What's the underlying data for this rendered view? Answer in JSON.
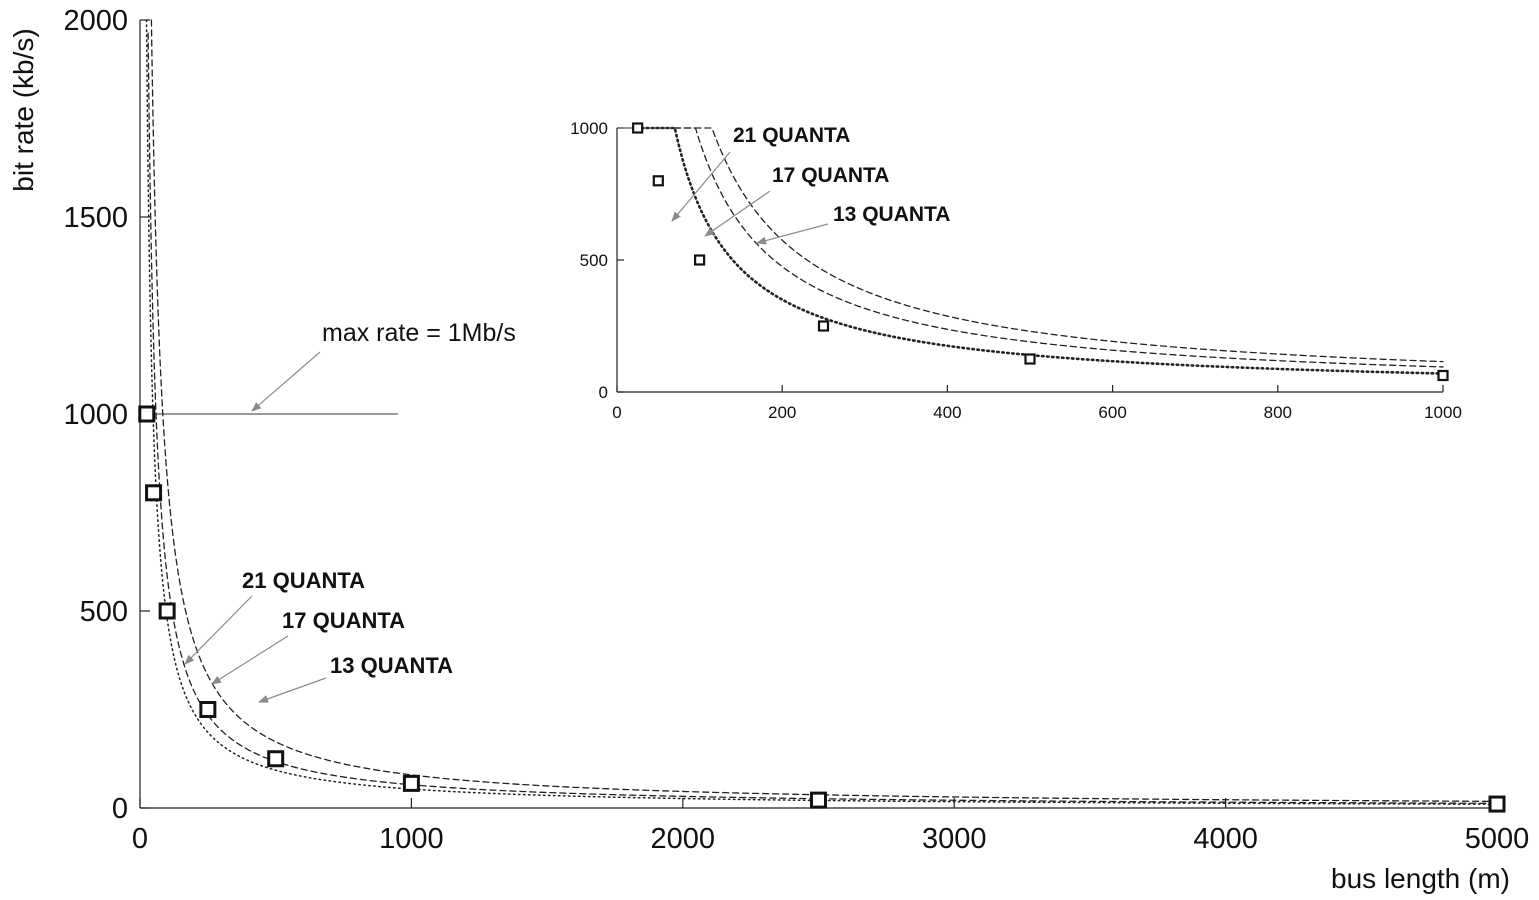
{
  "chart_data": [
    {
      "id": "main",
      "type": "line",
      "xlabel": "bus length (m)",
      "ylabel": "bit rate (kb/s)",
      "xlim": [
        0,
        5000
      ],
      "ylim": [
        0,
        2000
      ],
      "x_ticks": [
        0,
        1000,
        2000,
        3000,
        4000,
        5000
      ],
      "x_tick_labels": [
        "0",
        "1000",
        "2000",
        "3000",
        "4000",
        "5000"
      ],
      "y_ticks": [
        0,
        500,
        1000,
        1500,
        2000
      ],
      "y_tick_labels": [
        "0",
        "500",
        "1000",
        "1500",
        "2000"
      ],
      "series": [
        {
          "name": "13 QUANTA",
          "style": "dashed",
          "model": "k/x",
          "k": 84000,
          "x_range": [
            42,
            5000
          ]
        },
        {
          "name": "17 QUANTA",
          "style": "dashed",
          "model": "k/x",
          "k": 59000,
          "x_range": [
            30,
            5000
          ]
        },
        {
          "name": "21 QUANTA",
          "style": "dotted",
          "model": "k/x",
          "k": 48000,
          "x_range": [
            24,
            5000
          ]
        }
      ],
      "max_rate": {
        "label": "max rate = 1Mb/s",
        "value": 1000,
        "x_range": [
          0,
          950
        ]
      },
      "markers": {
        "name": "measured",
        "x": [
          25,
          50,
          100,
          250,
          500,
          1000,
          2500,
          5000
        ],
        "y": [
          1000,
          800,
          500,
          250,
          125,
          62.5,
          20,
          10
        ]
      },
      "labels": [
        "21 QUANTA",
        "17 QUANTA",
        "13 QUANTA"
      ]
    },
    {
      "id": "inset",
      "type": "line",
      "xlim": [
        0,
        1000
      ],
      "ylim": [
        0,
        1000
      ],
      "x_ticks": [
        0,
        200,
        400,
        600,
        800,
        1000
      ],
      "x_tick_labels": [
        "0",
        "200",
        "400",
        "600",
        "800",
        "1000"
      ],
      "y_ticks": [
        0,
        500,
        1000
      ],
      "y_tick_labels": [
        "0",
        "500",
        "1000"
      ],
      "series": [
        {
          "name": "13 QUANTA",
          "style": "dashed",
          "model": "k/x",
          "k": 115000,
          "x_range": [
            70,
            1000
          ]
        },
        {
          "name": "17 QUANTA",
          "style": "dashed",
          "model": "k/x",
          "k": 95000,
          "x_range": [
            45,
            1000
          ]
        },
        {
          "name": "21 QUANTA",
          "style": "dotted",
          "model": "k/x",
          "k": 70000,
          "x_range": [
            30,
            1000
          ]
        }
      ],
      "max_rate_value": 1000,
      "markers": {
        "name": "measured",
        "x": [
          25,
          50,
          100,
          250,
          500,
          1000
        ],
        "y": [
          1000,
          800,
          500,
          250,
          125,
          62.5
        ]
      },
      "labels": [
        "21 QUANTA",
        "17 QUANTA",
        "13 QUANTA"
      ]
    }
  ]
}
